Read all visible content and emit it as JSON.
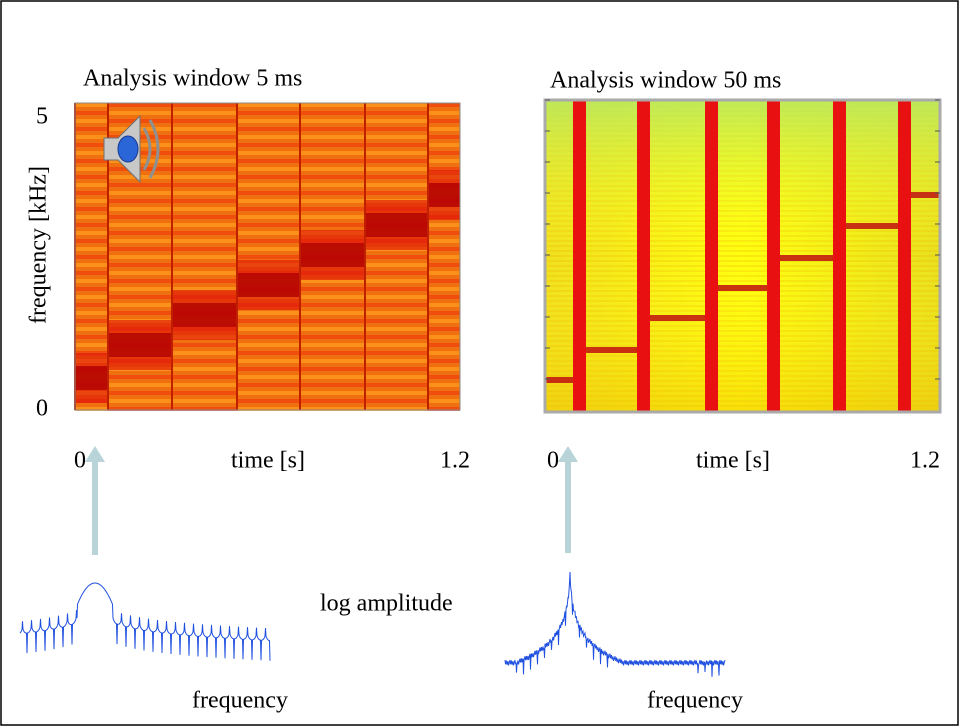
{
  "left_panel": {
    "title": "Analysis window 5 ms",
    "y_axis": {
      "label": "frequency [kHz]",
      "top": "5",
      "bottom": "0"
    },
    "x_axis": {
      "start": "0",
      "label": "time [s]",
      "end": "1.2"
    },
    "spectrum_x_label": "frequency"
  },
  "right_panel": {
    "title": "Analysis window 50 ms",
    "x_axis": {
      "start": "0",
      "label": "time [s]",
      "end": "1.2"
    },
    "spectrum_x_label": "frequency"
  },
  "spectrum_y_label": "log amplitude"
}
